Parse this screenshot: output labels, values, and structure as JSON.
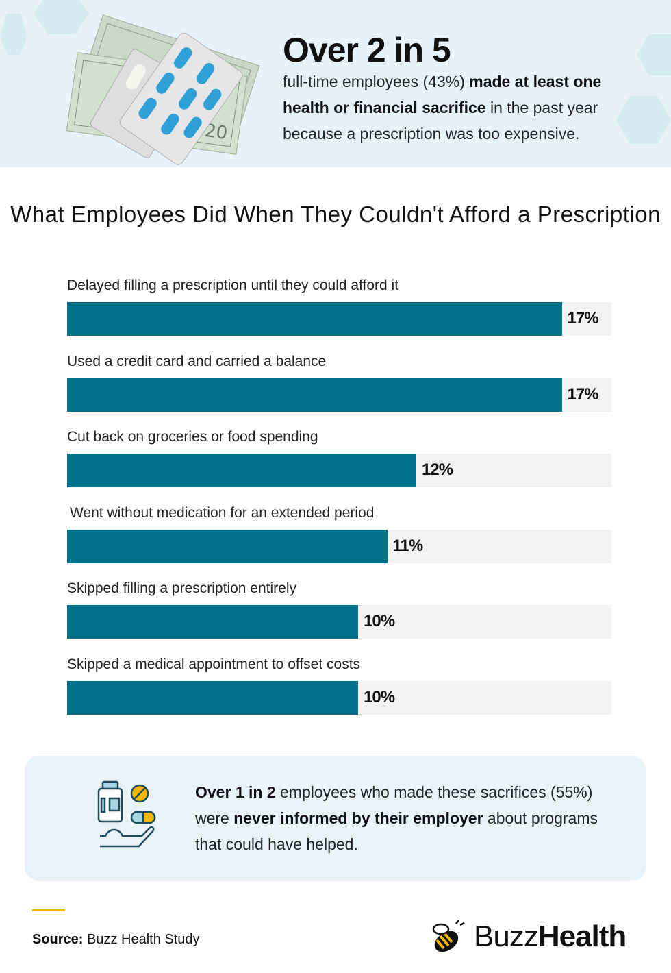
{
  "header": {
    "headline": "Over 2 in 5",
    "text_part1": "full-time employees (43%) ",
    "text_bold": "made at least one health or financial sacrifice",
    "text_part2": " in the past year because a prescription was too expensive."
  },
  "chart_data": {
    "type": "bar",
    "orientation": "horizontal",
    "title": "What Employees Did When They Couldn't Afford a Prescription",
    "categories": [
      "Delayed filling a prescription until they could afford it",
      "Used a credit card and carried a balance",
      "Cut back on groceries or food spending",
      "Went without medication for an extended period",
      "Skipped filling a prescription entirely",
      "Skipped a medical appointment to offset costs"
    ],
    "values": [
      17,
      17,
      12,
      11,
      10,
      10
    ],
    "labels": [
      "17%",
      "17%",
      "12%",
      "11%",
      "10%",
      "10%"
    ],
    "unit": "%",
    "bar_color": "#007188",
    "track_color": "#f2f2f2"
  },
  "callout": {
    "bold1": "Over 1 in 2",
    "text1": " employees who made these sacrifices (55%) were ",
    "bold2": "never informed by their employer",
    "text2": " about programs that could have helped."
  },
  "footer": {
    "source_label": "Source:",
    "source_value": " Buzz Health Study",
    "logo_text_light": "Buzz",
    "logo_text_bold": "Health",
    "accent": "#f5b700"
  }
}
